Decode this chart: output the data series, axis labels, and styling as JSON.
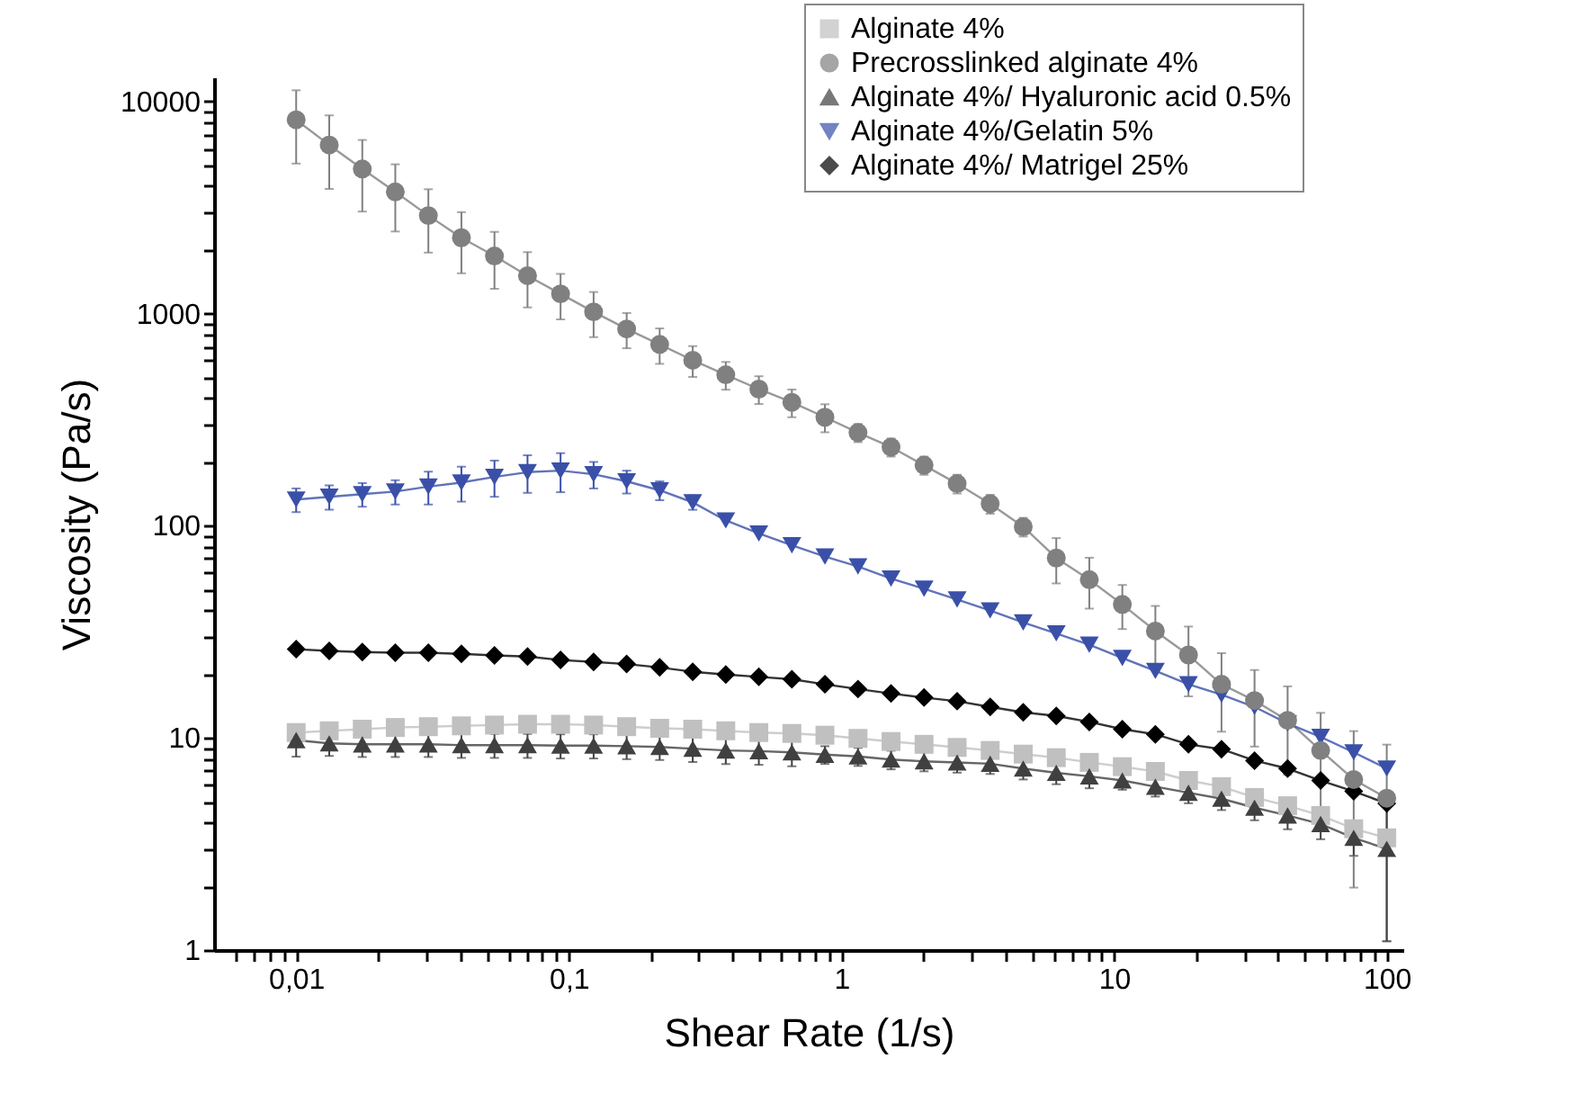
{
  "chart_data": {
    "type": "line",
    "xlabel": "Shear Rate (1/s)",
    "ylabel": "Viscosity (Pa/s)",
    "log": "xy",
    "grid": false,
    "legend": "top right",
    "x": [
      0.01,
      0.01322,
      0.01748,
      0.0231,
      0.03054,
      0.04037,
      0.05337,
      0.07055,
      0.09326,
      0.1233,
      0.163,
      0.2154,
      0.2848,
      0.3765,
      0.4977,
      0.6579,
      0.8697,
      1.15,
      1.52,
      2.009,
      2.656,
      3.511,
      4.642,
      6.136,
      8.111,
      10.72,
      14.17,
      18.74,
      24.77,
      32.74,
      43.29,
      57.22,
      75.65,
      100
    ],
    "xlim": [
      0.005,
      115
    ],
    "xticks": [
      {
        "value": 0.006,
        "label": null
      },
      {
        "value": 0.007,
        "label": null
      },
      {
        "value": 0.008,
        "label": null
      },
      {
        "value": 0.009,
        "label": null
      },
      {
        "value": 0.01,
        "label": "0,01"
      },
      {
        "value": 0.02,
        "label": null
      },
      {
        "value": 0.03,
        "label": null
      },
      {
        "value": 0.04,
        "label": null
      },
      {
        "value": 0.05,
        "label": null
      },
      {
        "value": 0.06,
        "label": null
      },
      {
        "value": 0.07,
        "label": null
      },
      {
        "value": 0.08,
        "label": null
      },
      {
        "value": 0.09,
        "label": null
      },
      {
        "value": 0.1,
        "label": "0,1"
      },
      {
        "value": 0.2,
        "label": null
      },
      {
        "value": 0.3,
        "label": null
      },
      {
        "value": 0.4,
        "label": null
      },
      {
        "value": 0.5,
        "label": null
      },
      {
        "value": 0.6,
        "label": null
      },
      {
        "value": 0.7,
        "label": null
      },
      {
        "value": 0.8,
        "label": null
      },
      {
        "value": 0.9,
        "label": null
      },
      1,
      {
        "value": 2,
        "label": null
      },
      {
        "value": 3,
        "label": null
      },
      {
        "value": 4,
        "label": null
      },
      {
        "value": 5,
        "label": null
      },
      {
        "value": 6,
        "label": null
      },
      {
        "value": 7,
        "label": null
      },
      {
        "value": 8,
        "label": null
      },
      {
        "value": 9,
        "label": null
      },
      10,
      {
        "value": 20,
        "label": null
      },
      {
        "value": 30,
        "label": null
      },
      {
        "value": 40,
        "label": null
      },
      {
        "value": 50,
        "label": null
      },
      {
        "value": 60,
        "label": null
      },
      {
        "value": 70,
        "label": null
      },
      {
        "value": 80,
        "label": null
      },
      {
        "value": 90,
        "label": null
      },
      100
    ],
    "ylim": [
      1,
      13000
    ],
    "yticks": [
      1,
      {
        "value": 2,
        "label": null
      },
      {
        "value": 3,
        "label": null
      },
      {
        "value": 4,
        "label": null
      },
      {
        "value": 5,
        "label": null
      },
      {
        "value": 6,
        "label": null
      },
      {
        "value": 7,
        "label": null
      },
      {
        "value": 8,
        "label": null
      },
      {
        "value": 9,
        "label": null
      },
      10,
      {
        "value": 20,
        "label": null
      },
      {
        "value": 30,
        "label": null
      },
      {
        "value": 40,
        "label": null
      },
      {
        "value": 50,
        "label": null
      },
      {
        "value": 60,
        "label": null
      },
      {
        "value": 70,
        "label": null
      },
      {
        "value": 80,
        "label": null
      },
      {
        "value": 90,
        "label": null
      },
      100,
      {
        "value": 200,
        "label": null
      },
      {
        "value": 300,
        "label": null
      },
      {
        "value": 400,
        "label": null
      },
      {
        "value": 500,
        "label": null
      },
      {
        "value": 600,
        "label": null
      },
      {
        "value": 700,
        "label": null
      },
      {
        "value": 800,
        "label": null
      },
      {
        "value": 900,
        "label": null
      },
      1000,
      {
        "value": 2000,
        "label": null
      },
      {
        "value": 3000,
        "label": null
      },
      {
        "value": 4000,
        "label": null
      },
      {
        "value": 5000,
        "label": null
      },
      {
        "value": 6000,
        "label": null
      },
      {
        "value": 7000,
        "label": null
      },
      {
        "value": 8000,
        "label": null
      },
      {
        "value": 9000,
        "label": null
      },
      10000
    ],
    "series": [
      {
        "name": "Alginate 4%",
        "color": "#c0c0c0",
        "marker": "square",
        "values": [
          10.6,
          10.8,
          11.0,
          11.2,
          11.3,
          11.4,
          11.5,
          11.6,
          11.6,
          11.5,
          11.3,
          11.1,
          11.0,
          10.8,
          10.6,
          10.5,
          10.3,
          9.95,
          9.62,
          9.33,
          9.02,
          8.73,
          8.39,
          8.07,
          7.67,
          7.32,
          6.95,
          6.3,
          5.89,
          5.24,
          4.79,
          4.31,
          3.73,
          3.38
        ]
      },
      {
        "name": "Precrosslinked alginate 4%",
        "color": "#808080",
        "marker": "circle",
        "values": [
          8200,
          6240,
          4810,
          3750,
          2900,
          2280,
          1870,
          1510,
          1240,
          1020,
          847,
          716,
          603,
          515,
          441,
          382,
          325,
          275,
          235,
          193,
          158,
          127,
          99,
          70.5,
          55.7,
          42.6,
          31.9,
          24.6,
          17.9,
          15.0,
          12.1,
          8.73,
          6.37,
          5.2
        ],
        "errors": [
          3100,
          2370,
          1780,
          1310,
          960,
          730,
          560,
          440,
          300,
          245,
          160,
          136,
          100,
          77,
          66,
          57,
          49,
          27,
          23,
          19,
          16,
          13,
          10,
          17,
          15,
          10,
          10,
          8.9,
          7.2,
          5.9,
          5.4,
          4.4,
          4.4,
          4.1
        ]
      },
      {
        "name": "Alginate 4%/ Hyaluronic acid 0.5%",
        "color": "#404040",
        "marker": "triangle-up",
        "values": [
          9.76,
          9.43,
          9.33,
          9.33,
          9.33,
          9.25,
          9.25,
          9.25,
          9.2,
          9.2,
          9.14,
          9.07,
          8.9,
          8.73,
          8.67,
          8.55,
          8.34,
          8.18,
          7.91,
          7.76,
          7.66,
          7.56,
          7.17,
          6.85,
          6.59,
          6.3,
          5.89,
          5.52,
          5.17,
          4.69,
          4.31,
          3.93,
          3.38,
          3.0
        ],
        "errors": [
          1.6,
          1.2,
          1.2,
          1.2,
          1.2,
          1.2,
          1.2,
          1.2,
          1.2,
          1.2,
          1.2,
          1.2,
          1.2,
          1.2,
          1.2,
          1.2,
          0.8,
          0.8,
          0.8,
          0.8,
          0.8,
          0.8,
          0.8,
          0.8,
          0.8,
          0.6,
          0.6,
          0.6,
          0.6,
          0.6,
          0.6,
          0.6,
          0.6,
          1.9
        ]
      },
      {
        "name": "Alginate 4%/Gelatin 5%",
        "color": "#3a50a8",
        "marker": "triangle-down",
        "values": [
          133,
          137,
          141,
          145,
          153,
          160,
          170,
          179,
          182,
          175,
          162,
          147,
          129,
          106,
          92,
          80.9,
          71.6,
          64.3,
          56.4,
          50.5,
          44.9,
          39.9,
          35.0,
          31.1,
          27.5,
          23.8,
          20.7,
          17.9,
          16.0,
          14.0,
          11.7,
          10.1,
          8.55,
          7.17
        ],
        "errors": [
          17,
          18,
          18,
          19,
          27,
          30,
          33,
          36,
          38,
          25,
          20,
          15,
          10,
          null,
          null,
          null,
          null,
          null,
          null,
          null,
          null,
          null,
          null,
          null,
          null,
          null,
          null,
          null,
          null,
          null,
          null,
          null,
          null,
          null
        ]
      },
      {
        "name": "Alginate 4%/ Matrigel 25%",
        "color": "#000000",
        "marker": "diamond",
        "values": [
          26.2,
          25.7,
          25.4,
          25.2,
          25.2,
          24.9,
          24.5,
          24.2,
          23.3,
          22.8,
          22.3,
          21.5,
          20.5,
          19.9,
          19.4,
          18.9,
          17.9,
          17.0,
          16.2,
          15.5,
          14.9,
          14.0,
          13.2,
          12.7,
          11.9,
          11.0,
          10.4,
          9.33,
          8.85,
          7.82,
          7.17,
          6.3,
          5.6,
          4.91
        ]
      }
    ]
  }
}
